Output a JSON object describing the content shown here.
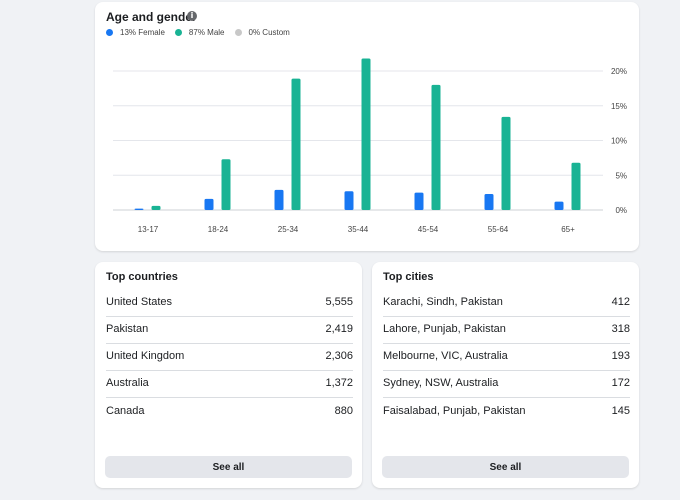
{
  "age_gender": {
    "title": "Age and gender",
    "legend": [
      {
        "label": "13% Female",
        "color": "#1877f2"
      },
      {
        "label": "87% Male",
        "color": "#19b394"
      },
      {
        "label": "0% Custom",
        "color": "#c8c8c8"
      }
    ]
  },
  "chart_data": {
    "type": "bar",
    "categories": [
      "13-17",
      "18-24",
      "25-34",
      "35-44",
      "45-54",
      "55-64",
      "65+"
    ],
    "series": [
      {
        "name": "Female",
        "color": "#1877f2",
        "values": [
          0.2,
          1.6,
          2.9,
          2.7,
          2.5,
          2.3,
          1.2
        ]
      },
      {
        "name": "Male",
        "color": "#19b394",
        "values": [
          0.6,
          7.3,
          18.9,
          21.8,
          18.0,
          13.4,
          6.8
        ]
      }
    ],
    "yticks": [
      "0%",
      "5%",
      "10%",
      "15%",
      "20%"
    ],
    "ylim": [
      0,
      20
    ],
    "grid": true,
    "legend_position": "top-left"
  },
  "top_countries": {
    "title": "Top countries",
    "rows": [
      {
        "name": "United States",
        "value": "5,555"
      },
      {
        "name": "Pakistan",
        "value": "2,419"
      },
      {
        "name": "United Kingdom",
        "value": "2,306"
      },
      {
        "name": "Australia",
        "value": "1,372"
      },
      {
        "name": "Canada",
        "value": "880"
      }
    ],
    "button": "See all"
  },
  "top_cities": {
    "title": "Top cities",
    "rows": [
      {
        "name": "Karachi, Sindh, Pakistan",
        "value": "412"
      },
      {
        "name": "Lahore, Punjab, Pakistan",
        "value": "318"
      },
      {
        "name": "Melbourne, VIC, Australia",
        "value": "193"
      },
      {
        "name": "Sydney, NSW, Australia",
        "value": "172"
      },
      {
        "name": "Faisalabad, Punjab, Pakistan",
        "value": "145"
      }
    ],
    "button": "See all"
  }
}
